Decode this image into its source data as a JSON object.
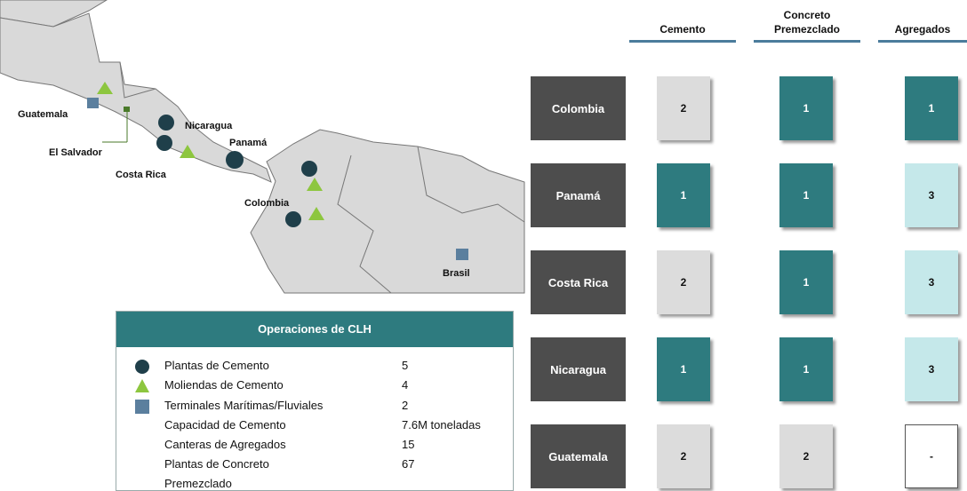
{
  "map": {
    "labels": [
      "Guatemala",
      "El Salvador",
      "Nicaragua",
      "Costa Rica",
      "Panamá",
      "Colombia",
      "Brasil"
    ]
  },
  "legend": {
    "title": "Operaciones de CLH",
    "rows": [
      [
        "Plantas de Cemento",
        "5"
      ],
      [
        "Moliendas de Cemento",
        "4"
      ],
      [
        "Terminales Marítimas/Fluviales",
        "2"
      ],
      [
        "Capacidad de Cemento",
        "7.6M toneladas"
      ],
      [
        "Canteras de Agregados",
        "15"
      ],
      [
        "Plantas de Concreto Premezclado",
        "67"
      ]
    ]
  },
  "grid": {
    "columns": [
      "Cemento",
      "Concreto Premezclado",
      "Agregados"
    ],
    "rows": [
      {
        "country": "Colombia",
        "values": [
          "2",
          "1",
          "1"
        ]
      },
      {
        "country": "Panamá",
        "values": [
          "1",
          "1",
          "3"
        ]
      },
      {
        "country": "Costa Rica",
        "values": [
          "2",
          "1",
          "3"
        ]
      },
      {
        "country": "Nicaragua",
        "values": [
          "1",
          "1",
          "3"
        ]
      },
      {
        "country": "Guatemala",
        "values": [
          "2",
          "2",
          "-"
        ]
      }
    ]
  }
}
